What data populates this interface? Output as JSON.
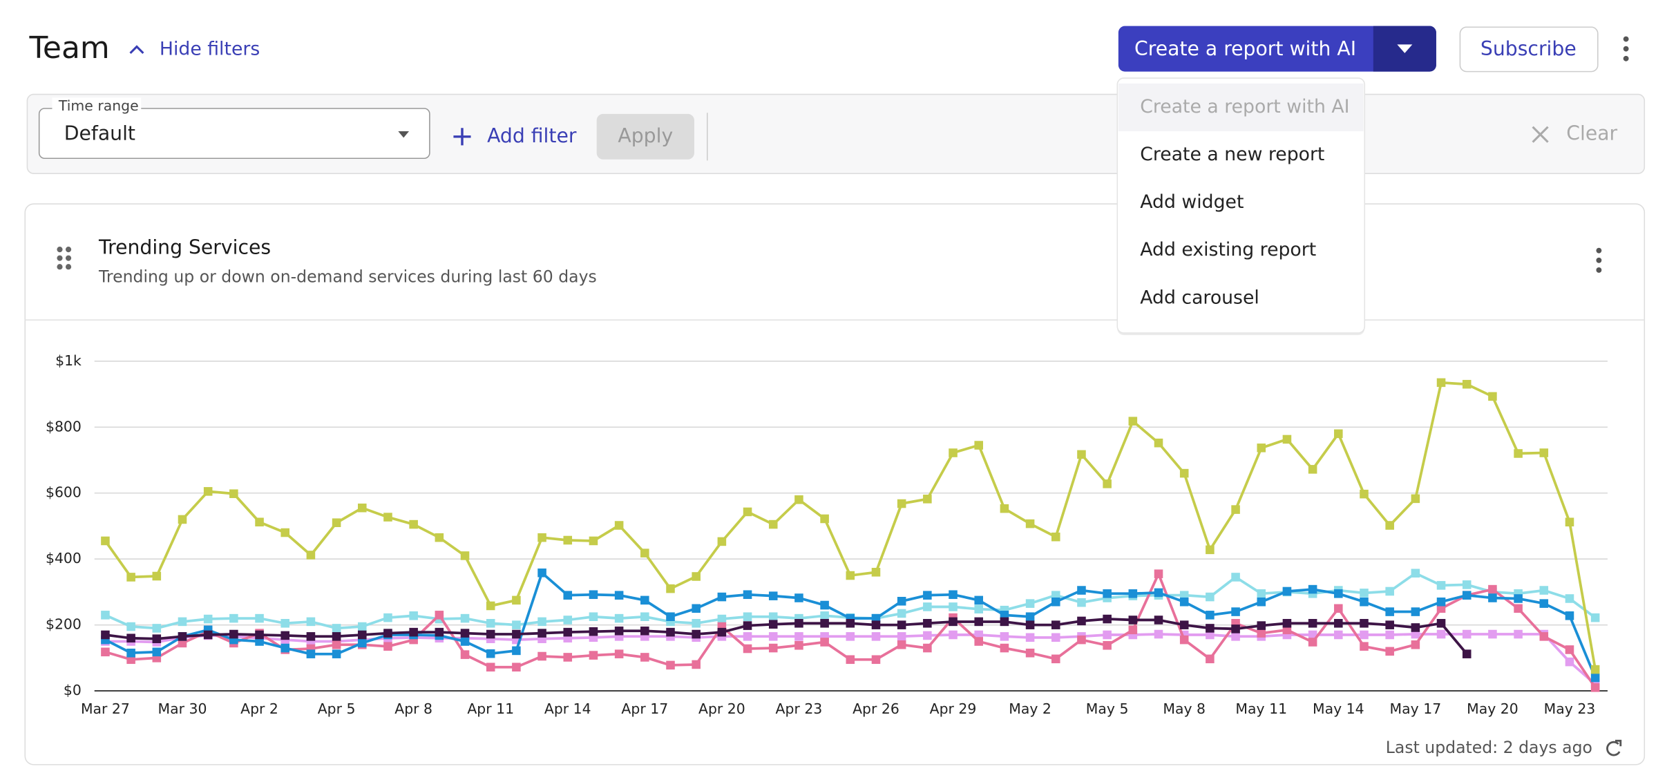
{
  "header": {
    "title": "Team",
    "toggle_filters": "Hide filters",
    "create_button": "Create a report with AI",
    "subscribe": "Subscribe"
  },
  "filters": {
    "time_range_label": "Time range",
    "time_range_value": "Default",
    "add_filter": "Add filter",
    "apply": "Apply",
    "clear": "Clear"
  },
  "menu": {
    "items": [
      "Create a report with AI",
      "Create a new report",
      "Add widget",
      "Add existing report",
      "Add carousel"
    ]
  },
  "card": {
    "title": "Trending Services",
    "subtitle": "Trending up or down on-demand services during last 60 days",
    "footer": "Last updated: 2 days ago"
  },
  "chart_data": {
    "type": "line",
    "categories": [
      "Mar 27",
      null,
      null,
      "Mar 30",
      null,
      null,
      "Apr 2",
      null,
      null,
      "Apr 5",
      null,
      null,
      "Apr 8",
      null,
      null,
      "Apr 11",
      null,
      null,
      "Apr 14",
      null,
      null,
      "Apr 17",
      null,
      null,
      "Apr 20",
      null,
      null,
      "Apr 23",
      null,
      null,
      "Apr 26",
      null,
      null,
      "Apr 29",
      null,
      null,
      "May 2",
      null,
      null,
      "May 5",
      null,
      null,
      "May 8",
      null,
      null,
      "May 11",
      null,
      null,
      "May 14",
      null,
      null,
      "May 17",
      null,
      null,
      "May 20",
      null,
      null,
      "May 23",
      null
    ],
    "ylim": [
      0,
      1000
    ],
    "yticks": [
      {
        "value": 0,
        "label": "$0"
      },
      {
        "value": 200,
        "label": "$200"
      },
      {
        "value": 400,
        "label": "$400"
      },
      {
        "value": 600,
        "label": "$600"
      },
      {
        "value": 800,
        "label": "$800"
      },
      {
        "value": 1000,
        "label": "$1k"
      }
    ],
    "grid": true,
    "series": [
      {
        "color": "#e29cf0",
        "values": [
          150,
          150,
          148,
          162,
          168,
          165,
          160,
          155,
          150,
          150,
          155,
          160,
          162,
          160,
          160,
          158,
          155,
          158,
          160,
          162,
          165,
          165,
          165,
          162,
          165,
          165,
          165,
          165,
          165,
          165,
          165,
          165,
          168,
          170,
          170,
          165,
          162,
          162,
          165,
          170,
          170,
          172,
          170,
          170,
          165,
          165,
          170,
          170,
          170,
          170,
          170,
          172,
          172,
          172,
          172,
          172,
          172,
          88,
          20
        ]
      },
      {
        "color": "#8ddde8",
        "values": [
          230,
          195,
          190,
          210,
          218,
          220,
          220,
          205,
          210,
          190,
          195,
          222,
          228,
          218,
          220,
          205,
          200,
          210,
          215,
          225,
          220,
          225,
          210,
          205,
          218,
          225,
          225,
          220,
          228,
          222,
          220,
          235,
          255,
          255,
          248,
          245,
          265,
          290,
          268,
          282,
          288,
          290,
          290,
          285,
          345,
          295,
          300,
          295,
          305,
          297,
          302,
          357,
          320,
          322,
          300,
          295,
          305,
          280,
          222
        ]
      },
      {
        "color": "#e8709a",
        "values": [
          118,
          95,
          100,
          145,
          180,
          145,
          175,
          125,
          128,
          140,
          140,
          135,
          155,
          230,
          110,
          72,
          72,
          105,
          102,
          108,
          112,
          102,
          78,
          80,
          195,
          128,
          130,
          138,
          148,
          95,
          95,
          140,
          130,
          222,
          150,
          130,
          115,
          97,
          155,
          138,
          185,
          355,
          155,
          97,
          205,
          175,
          185,
          148,
          250,
          135,
          120,
          140,
          250,
          290,
          308,
          250,
          165,
          125,
          10
        ]
      },
      {
        "color": "#1a8fd6",
        "values": [
          155,
          115,
          118,
          165,
          185,
          155,
          150,
          130,
          112,
          112,
          145,
          170,
          170,
          168,
          150,
          113,
          122,
          358,
          290,
          292,
          290,
          275,
          225,
          250,
          285,
          292,
          288,
          282,
          260,
          220,
          220,
          272,
          290,
          292,
          275,
          230,
          225,
          270,
          305,
          295,
          295,
          298,
          270,
          230,
          240,
          270,
          302,
          308,
          295,
          270,
          240,
          240,
          270,
          290,
          282,
          280,
          265,
          228,
          40
        ]
      },
      {
        "color": "#3d1446",
        "values": [
          170,
          160,
          158,
          165,
          170,
          172,
          170,
          168,
          165,
          165,
          170,
          175,
          178,
          178,
          175,
          172,
          172,
          175,
          178,
          180,
          182,
          182,
          178,
          172,
          178,
          198,
          202,
          205,
          205,
          205,
          200,
          200,
          205,
          210,
          210,
          210,
          200,
          200,
          212,
          218,
          215,
          215,
          200,
          190,
          188,
          198,
          205,
          205,
          205,
          205,
          200,
          192,
          205,
          112,
          null,
          null,
          null,
          null,
          null
        ]
      },
      {
        "color": "#c5cc4a",
        "values": [
          455,
          345,
          348,
          520,
          605,
          598,
          512,
          480,
          412,
          510,
          555,
          527,
          505,
          465,
          410,
          258,
          275,
          465,
          457,
          455,
          502,
          418,
          310,
          347,
          453,
          543,
          505,
          580,
          522,
          350,
          360,
          568,
          582,
          722,
          745,
          553,
          507,
          467,
          717,
          628,
          818,
          752,
          660,
          428,
          550,
          737,
          763,
          672,
          780,
          597,
          502,
          583,
          935,
          930,
          893,
          720,
          722,
          512,
          65
        ]
      }
    ]
  }
}
